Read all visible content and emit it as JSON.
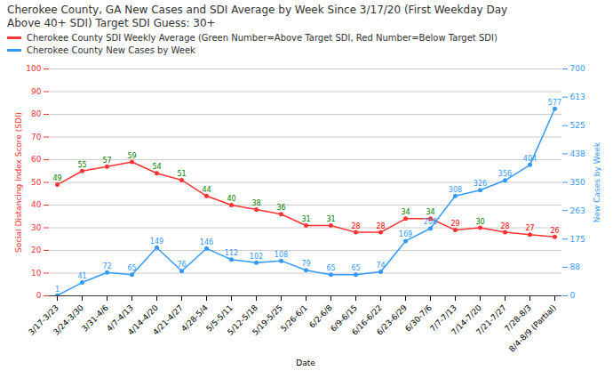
{
  "chart_data": {
    "type": "line",
    "title": "Cherokee County, GA New Cases and SDI Average by Week Since 3/17/20 (First Weekday Day\nAbove 40+ SDI) Target SDI Guess: 30+",
    "x_label": "Date",
    "y_label": "Social Distancing Index Score (SDI)",
    "y2_label": "New Cases by Week",
    "categories": [
      "3/17-3/23",
      "3/24-3/30",
      "3/31-4/6",
      "4/7-4/13",
      "4/14-4/20",
      "4/21-4/27",
      "4/28-5/4",
      "5/5-5/11",
      "5/12-5/18",
      "5/19-5/25",
      "5/26-6/1",
      "6/2-6/8",
      "6/9-6/15",
      "6/16-6/22",
      "6/23-6/29",
      "6/30-7/6",
      "7/7-7/13",
      "7/14-7/20",
      "7/21-7/27",
      "7/28-8/3",
      "8/4-8/9 (Partial)"
    ],
    "series": [
      {
        "name": "Cherokee County SDI Weekly Average (Green Number=Above Target SDI, Red Number=Below Target SDI)",
        "color": "#ff3333",
        "marker": "circle",
        "axis": "y",
        "values": [
          49,
          55,
          57,
          59,
          54,
          51,
          44,
          40,
          38,
          36,
          31,
          31,
          28,
          28,
          34,
          34,
          29,
          30,
          28,
          27,
          26
        ],
        "target": 30,
        "label_colors": [
          "green",
          "red"
        ]
      },
      {
        "name": "Cherokee County New Cases by Week",
        "color": "#3399ff",
        "marker": "circle",
        "axis": "y2",
        "values": [
          1,
          41,
          72,
          65,
          149,
          76,
          146,
          112,
          102,
          108,
          79,
          65,
          65,
          74,
          169,
          208,
          308,
          326,
          356,
          404,
          577
        ]
      }
    ],
    "ylim": [
      0,
      100
    ],
    "yticks": [
      0,
      10,
      20,
      30,
      40,
      50,
      60,
      70,
      80,
      90,
      100
    ],
    "y2lim": [
      0,
      700
    ],
    "y2ticks": [
      0,
      88,
      175,
      263,
      350,
      438,
      525,
      613,
      700
    ],
    "grid": true,
    "legend": "top",
    "data_labels": true
  }
}
